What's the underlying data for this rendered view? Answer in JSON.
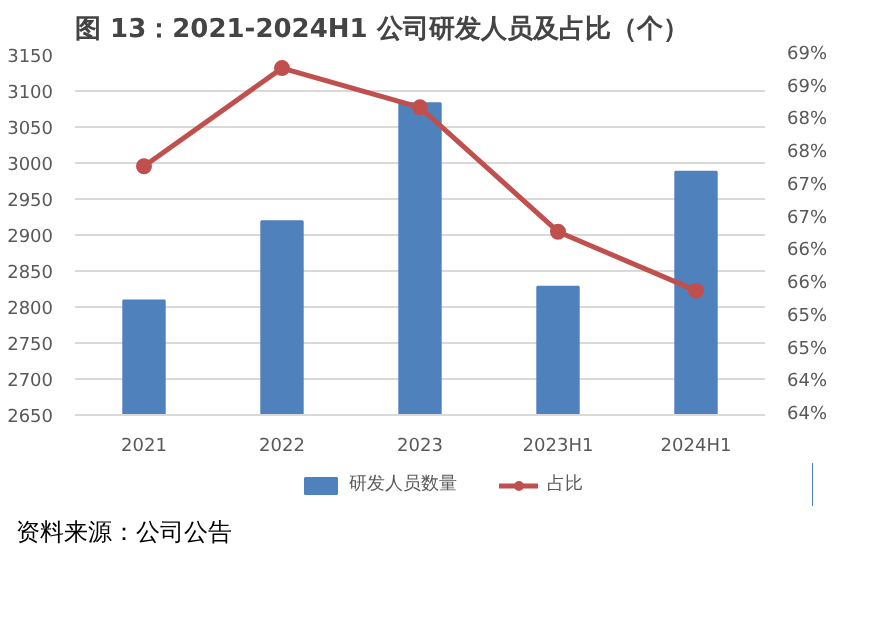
{
  "chart_data": {
    "type": "bar",
    "title": "图 13：2021-2024H1 公司研发人员及占比（个）",
    "categories": [
      "2021",
      "2022",
      "2023",
      "2023H1",
      "2024H1"
    ],
    "series": [
      {
        "name": "研发人员数量",
        "color": "#4f81bd",
        "values": [
          2809,
          2919,
          3083,
          2828,
          2988
        ]
      },
      {
        "name": "占比",
        "type": "line",
        "axis": "y2",
        "color": "#c0504d",
        "marker": "circle",
        "values": [
          67.3,
          68.8,
          68.2,
          66.3,
          65.4
        ]
      }
    ],
    "ylim": [
      2650,
      3150
    ],
    "yticks": [
      2650,
      2700,
      2750,
      2800,
      2850,
      2900,
      2950,
      3000,
      3050,
      3100,
      3150
    ],
    "y2lim": [
      63.5,
      69.0
    ],
    "y2ticks": [
      {
        "value": 63.5,
        "label": "64%"
      },
      {
        "value": 64.0,
        "label": "64%"
      },
      {
        "value": 64.5,
        "label": "65%"
      },
      {
        "value": 65.0,
        "label": "65%"
      },
      {
        "value": 65.5,
        "label": "66%"
      },
      {
        "value": 66.0,
        "label": "66%"
      },
      {
        "value": 66.5,
        "label": "67%"
      },
      {
        "value": 67.0,
        "label": "67%"
      },
      {
        "value": 67.5,
        "label": "68%"
      },
      {
        "value": 68.0,
        "label": "68%"
      },
      {
        "value": 68.5,
        "label": "69%"
      },
      {
        "value": 69.0,
        "label": "69%"
      }
    ],
    "grid": "y",
    "legend": "bottom",
    "annotations": [
      "资料来源：公司公告"
    ]
  }
}
